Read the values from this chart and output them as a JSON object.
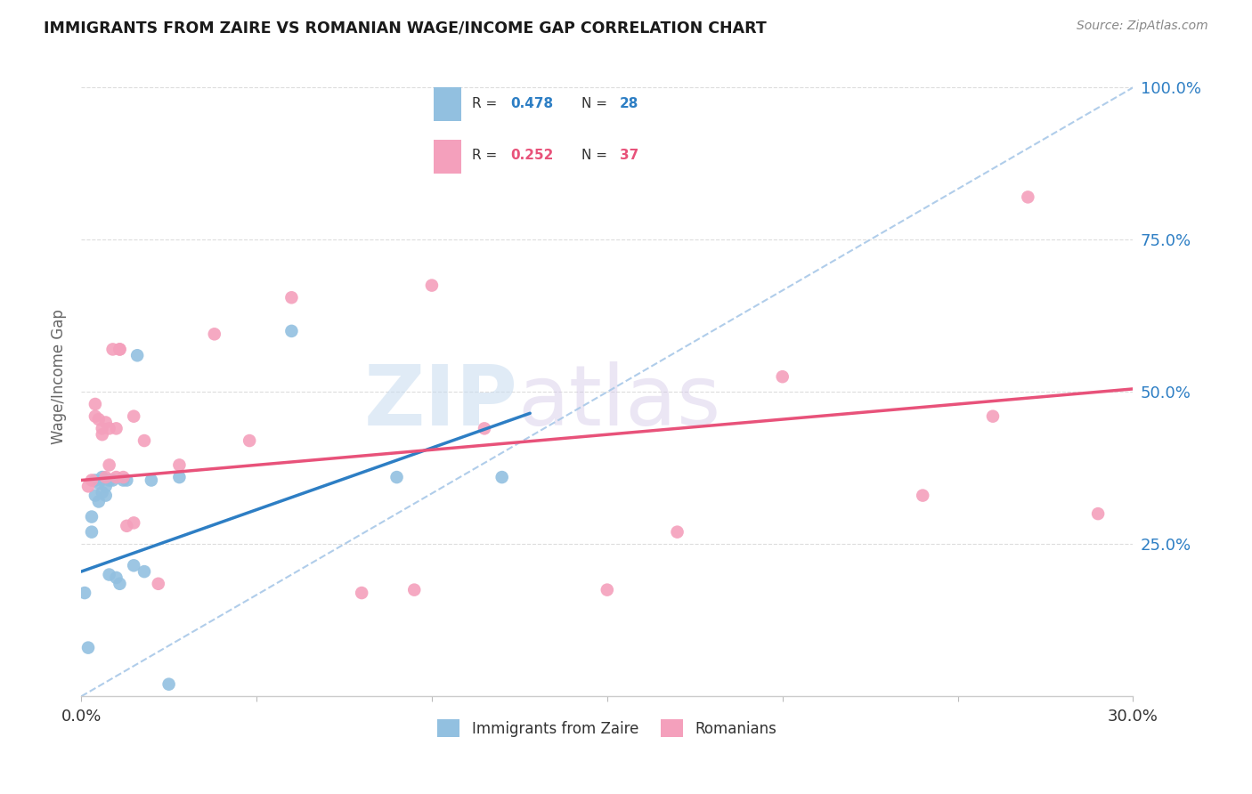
{
  "title": "IMMIGRANTS FROM ZAIRE VS ROMANIAN WAGE/INCOME GAP CORRELATION CHART",
  "source": "Source: ZipAtlas.com",
  "ylabel": "Wage/Income Gap",
  "legend_label1": "Immigrants from Zaire",
  "legend_label2": "Romanians",
  "blue_R": "0.478",
  "blue_N": "28",
  "pink_R": "0.252",
  "pink_N": "37",
  "blue_color": "#92c0e0",
  "pink_color": "#f4a0bc",
  "blue_line_color": "#2d7ec4",
  "pink_line_color": "#e8527a",
  "dashed_line_color": "#a8c8e8",
  "xmin": 0.0,
  "xmax": 0.3,
  "ymin": 0.0,
  "ymax": 1.05,
  "blue_x": [
    0.001,
    0.002,
    0.003,
    0.003,
    0.004,
    0.004,
    0.005,
    0.005,
    0.006,
    0.006,
    0.007,
    0.007,
    0.008,
    0.008,
    0.009,
    0.01,
    0.011,
    0.012,
    0.013,
    0.015,
    0.016,
    0.018,
    0.02,
    0.025,
    0.028,
    0.06,
    0.09,
    0.12
  ],
  "blue_y": [
    0.17,
    0.08,
    0.295,
    0.27,
    0.33,
    0.355,
    0.32,
    0.35,
    0.335,
    0.36,
    0.345,
    0.33,
    0.355,
    0.2,
    0.355,
    0.195,
    0.185,
    0.355,
    0.355,
    0.215,
    0.56,
    0.205,
    0.355,
    0.02,
    0.36,
    0.6,
    0.36,
    0.36
  ],
  "pink_x": [
    0.002,
    0.003,
    0.004,
    0.004,
    0.005,
    0.006,
    0.006,
    0.007,
    0.007,
    0.008,
    0.008,
    0.009,
    0.01,
    0.01,
    0.011,
    0.011,
    0.012,
    0.013,
    0.015,
    0.015,
    0.018,
    0.022,
    0.028,
    0.038,
    0.048,
    0.06,
    0.08,
    0.095,
    0.1,
    0.115,
    0.15,
    0.17,
    0.2,
    0.24,
    0.26,
    0.27,
    0.29
  ],
  "pink_y": [
    0.345,
    0.355,
    0.48,
    0.46,
    0.455,
    0.44,
    0.43,
    0.45,
    0.36,
    0.44,
    0.38,
    0.57,
    0.36,
    0.44,
    0.57,
    0.57,
    0.36,
    0.28,
    0.285,
    0.46,
    0.42,
    0.185,
    0.38,
    0.595,
    0.42,
    0.655,
    0.17,
    0.175,
    0.675,
    0.44,
    0.175,
    0.27,
    0.525,
    0.33,
    0.46,
    0.82,
    0.3
  ],
  "blue_trendline_x": [
    0.0,
    0.128
  ],
  "blue_trendline_y": [
    0.205,
    0.465
  ],
  "pink_trendline_x": [
    0.0,
    0.3
  ],
  "pink_trendline_y": [
    0.355,
    0.505
  ],
  "dashed_line_x": [
    0.0,
    0.3
  ],
  "dashed_line_y": [
    0.0,
    1.0
  ],
  "watermark_zip": "ZIP",
  "watermark_atlas": "atlas"
}
